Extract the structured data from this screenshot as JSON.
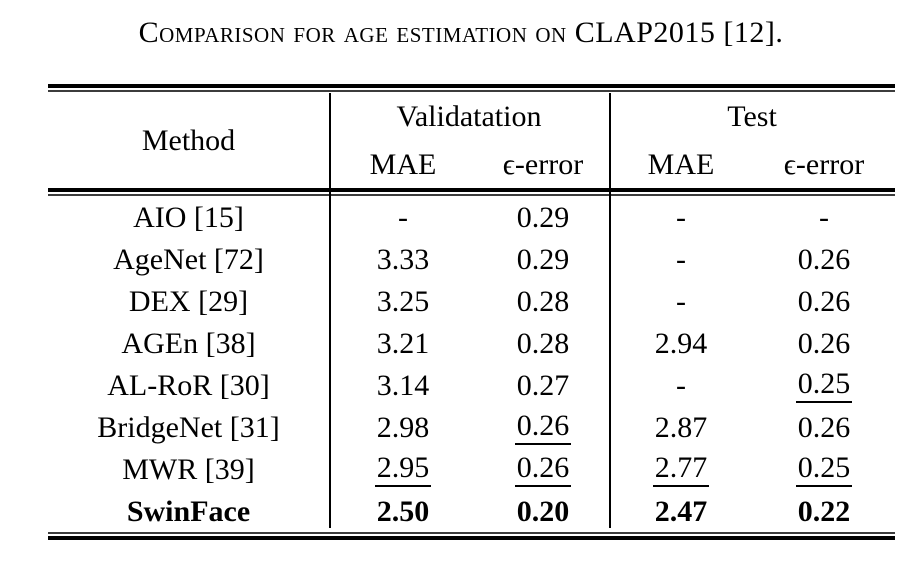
{
  "caption": "Comparison for age estimation on CLAP2015 [12].",
  "table": {
    "headers": {
      "method": "Method",
      "validation_group": "Validatation",
      "test_group": "Test",
      "mae": "MAE",
      "epsilon_error": "ϵ-error"
    },
    "rows": [
      {
        "method": "AIO [15]",
        "val_mae": "-",
        "val_eps": "0.29",
        "test_mae": "-",
        "test_eps": "-"
      },
      {
        "method": "AgeNet [72]",
        "val_mae": "3.33",
        "val_eps": "0.29",
        "test_mae": "-",
        "test_eps": "0.26"
      },
      {
        "method": "DEX [29]",
        "val_mae": "3.25",
        "val_eps": "0.28",
        "test_mae": "-",
        "test_eps": "0.26"
      },
      {
        "method": "AGEn [38]",
        "val_mae": "3.21",
        "val_eps": "0.28",
        "test_mae": "2.94",
        "test_eps": "0.26"
      },
      {
        "method": "AL-RoR [30]",
        "val_mae": "3.14",
        "val_eps": "0.27",
        "test_mae": "-",
        "test_eps": "0.25"
      },
      {
        "method": "BridgeNet [31]",
        "val_mae": "2.98",
        "val_eps": "0.26",
        "test_mae": "2.87",
        "test_eps": "0.26"
      },
      {
        "method": "MWR [39]",
        "val_mae": "2.95",
        "val_eps": "0.26",
        "test_mae": "2.77",
        "test_eps": "0.25"
      },
      {
        "method": "SwinFace",
        "val_mae": "2.50",
        "val_eps": "0.20",
        "test_mae": "2.47",
        "test_eps": "0.22"
      }
    ]
  }
}
